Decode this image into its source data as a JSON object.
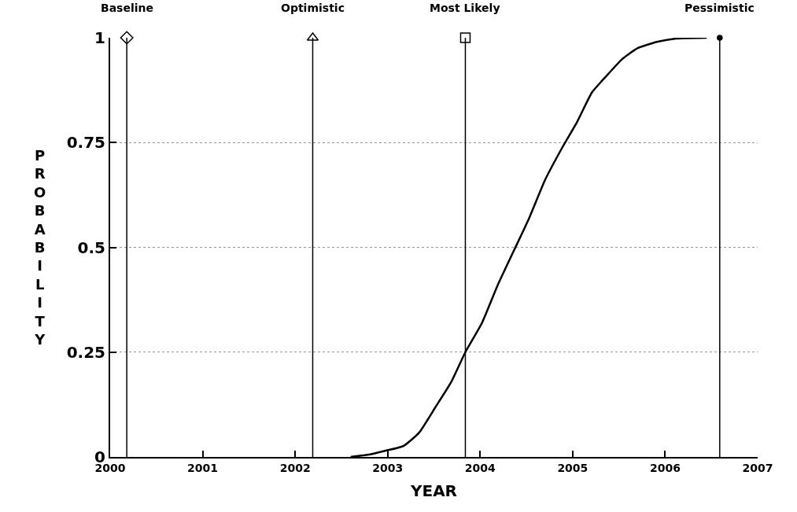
{
  "chart_data": {
    "type": "line",
    "xlabel": "YEAR",
    "ylabel": "PROBABILITY",
    "xlim": [
      2000,
      2007
    ],
    "xticks": [
      2000,
      2001,
      2002,
      2003,
      2004,
      2005,
      2006,
      2007
    ],
    "ylim": [
      0,
      1
    ],
    "yticks": [
      0,
      0.25,
      0.5,
      0.75,
      1
    ],
    "grid": "y",
    "series": [
      {
        "color": "#000000",
        "marker": "none",
        "line_style": "solid",
        "x": [
          2002.6,
          2002.81,
          2002.98,
          2003.17,
          2003.34,
          2003.52,
          2003.69,
          2003.84,
          2004.02,
          2004.19,
          2004.36,
          2004.53,
          2004.7,
          2004.88,
          2005.05,
          2005.21,
          2005.37,
          2005.54,
          2005.7,
          2005.91,
          2006.12,
          2006.45
        ],
        "values": [
          0,
          0.006,
          0.015,
          0.026,
          0.058,
          0.12,
          0.18,
          0.25,
          0.32,
          0.41,
          0.49,
          0.57,
          0.66,
          0.735,
          0.8,
          0.87,
          0.91,
          0.95,
          0.975,
          0.99,
          0.998,
          1
        ]
      },
      {
        "type": "lollipop",
        "name": "Baseline",
        "color": "#000000",
        "marker": "diamond",
        "x": [
          2000.18
        ],
        "values": [
          1
        ]
      },
      {
        "type": "lollipop",
        "name": "Optimistic",
        "color": "#000000",
        "marker": "triangle",
        "x": [
          2002.19
        ],
        "values": [
          1
        ]
      },
      {
        "type": "lollipop",
        "name": "Most Likely",
        "color": "#000000",
        "marker": "square",
        "x": [
          2003.84
        ],
        "values": [
          1
        ]
      },
      {
        "type": "lollipop",
        "name": "Pessimistic",
        "color": "#000000",
        "marker": "circle",
        "x": [
          2006.59
        ],
        "values": [
          1
        ]
      }
    ]
  }
}
